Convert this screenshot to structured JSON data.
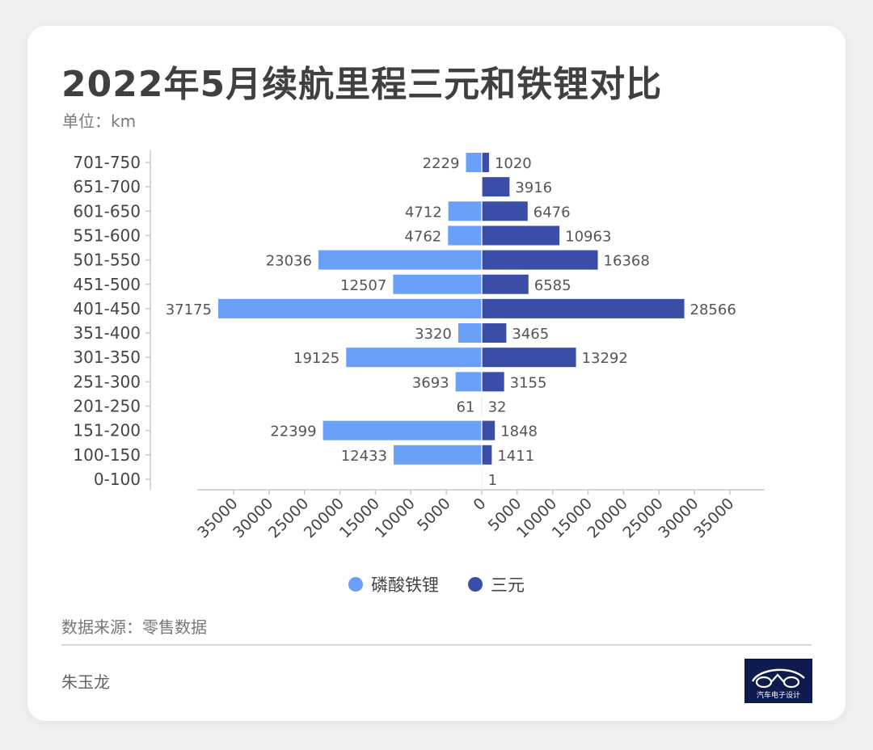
{
  "header": {
    "title": "2022年5月续航里程三元和铁锂对比",
    "unit": "单位：km"
  },
  "footer": {
    "source": "数据来源：零售数据",
    "author": "朱玉龙",
    "logo_text": "汽车电子设计"
  },
  "colors": {
    "lfp": "#6aa0f8",
    "ncm": "#3a4ea8",
    "axis": "#c8c8c8",
    "label": "#555555",
    "logo_bg": "#0f1a4f"
  },
  "chart_data": {
    "type": "bar",
    "orientation": "horizontal-butterfly",
    "categories": [
      "701-750",
      "651-700",
      "601-650",
      "551-600",
      "501-550",
      "451-500",
      "401-450",
      "351-400",
      "301-350",
      "251-300",
      "201-250",
      "151-200",
      "100-150",
      "0-100"
    ],
    "series": [
      {
        "name": "磷酸铁锂",
        "direction": "left",
        "values": [
          2229,
          null,
          4712,
          4762,
          23036,
          12507,
          37175,
          3320,
          19125,
          3693,
          61,
          22399,
          12433,
          null
        ]
      },
      {
        "name": "三元",
        "direction": "right",
        "values": [
          1020,
          3916,
          6476,
          10963,
          16368,
          6585,
          28566,
          3465,
          13292,
          3155,
          32,
          1848,
          1411,
          1
        ]
      }
    ],
    "xlim": [
      -35000,
      35000
    ],
    "x_ticks": [
      "35000",
      "30000",
      "25000",
      "20000",
      "15000",
      "10000",
      "5000",
      "0",
      "5000",
      "10000",
      "15000",
      "20000",
      "25000",
      "30000",
      "35000"
    ],
    "legend_position": "bottom",
    "grid": false
  }
}
